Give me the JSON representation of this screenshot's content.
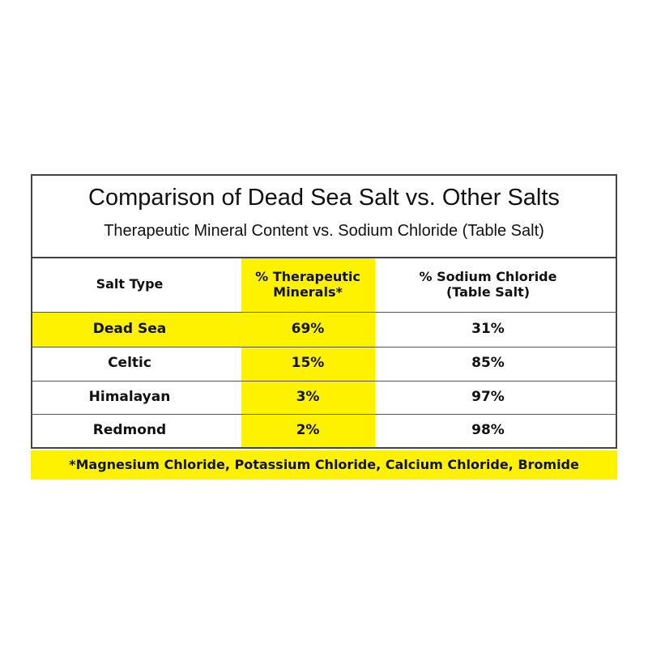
{
  "header": {
    "title": "Comparison of Dead Sea Salt vs. Other Salts",
    "subtitle": "Therapeutic Mineral Content vs. Sodium Chloride (Table Salt)"
  },
  "table": {
    "columns": [
      "Salt Type",
      "% Therapeutic Minerals*",
      "%  Sodium Chloride (Table Salt)"
    ],
    "rows": [
      [
        "Dead Sea",
        "69%",
        "31%"
      ],
      [
        "Celtic",
        "15%",
        "85%"
      ],
      [
        "Himalayan",
        "3%",
        "97%"
      ],
      [
        "Redmond",
        "2%",
        "98%"
      ]
    ]
  },
  "footnote": "*Magnesium Chloride, Potassium Chloride, Calcium Chloride, Bromide"
}
